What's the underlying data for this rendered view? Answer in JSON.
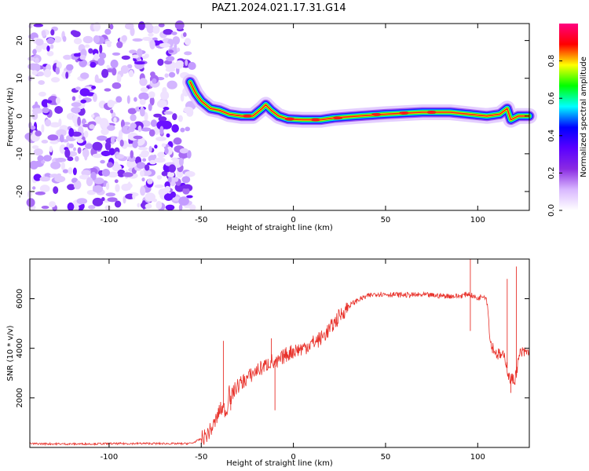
{
  "title": "PAZ1.2024.021.17.31.G14",
  "chart_data": [
    {
      "type": "heatmap",
      "xlabel": "Height of straight line (km)",
      "ylabel": "Frequency (Hz)",
      "xlim": [
        -143,
        128
      ],
      "ylim": [
        -25,
        24.5
      ],
      "x_ticks": [
        -100,
        -50,
        0,
        50,
        100
      ],
      "y_ticks": [
        -20,
        -10,
        0,
        10,
        20
      ],
      "colorbar": {
        "label": "Normalized spectral amplitude",
        "range": [
          0,
          1
        ],
        "ticks": [
          0.0,
          0.2,
          0.4,
          0.6,
          0.8
        ],
        "colormap": [
          "#ffffff",
          "#d9b8ff",
          "#8a2be2",
          "#5a00ff",
          "#0000ff",
          "#00ffff",
          "#00ff00",
          "#ffff00",
          "#ff0000",
          "#ff0080"
        ]
      },
      "noise_region_x": [
        -143,
        -53
      ],
      "ridge": [
        {
          "x": -56,
          "y": 9
        },
        {
          "x": -53,
          "y": 6
        },
        {
          "x": -50,
          "y": 4
        },
        {
          "x": -45,
          "y": 2
        },
        {
          "x": -40,
          "y": 1.5
        },
        {
          "x": -35,
          "y": 0.5
        },
        {
          "x": -28,
          "y": 0
        },
        {
          "x": -22,
          "y": 0
        },
        {
          "x": -17,
          "y": 2
        },
        {
          "x": -15,
          "y": 3
        },
        {
          "x": -12,
          "y": 1.5
        },
        {
          "x": -8,
          "y": 0
        },
        {
          "x": -3,
          "y": -0.8
        },
        {
          "x": 5,
          "y": -1
        },
        {
          "x": 15,
          "y": -1
        },
        {
          "x": 22,
          "y": -0.5
        },
        {
          "x": 35,
          "y": 0
        },
        {
          "x": 50,
          "y": 0.5
        },
        {
          "x": 70,
          "y": 1
        },
        {
          "x": 85,
          "y": 1
        },
        {
          "x": 95,
          "y": 0.5
        },
        {
          "x": 105,
          "y": 0
        },
        {
          "x": 112,
          "y": 0.5
        },
        {
          "x": 116,
          "y": 2
        },
        {
          "x": 118,
          "y": -1
        },
        {
          "x": 122,
          "y": 0
        },
        {
          "x": 128,
          "y": 0
        }
      ]
    },
    {
      "type": "line",
      "xlabel": "Height of straight line (km)",
      "ylabel": "SNR (10 * v/v)",
      "xlim": [
        -143,
        128
      ],
      "ylim": [
        0,
        7600
      ],
      "x_ticks": [
        -100,
        -50,
        0,
        50,
        100
      ],
      "y_ticks": [
        2000,
        4000,
        6000
      ],
      "color": "#e8312a",
      "series": [
        {
          "x": [
            -143,
            -120,
            -100,
            -80,
            -60,
            -55,
            -50,
            -47,
            -44,
            -42,
            -40,
            -38,
            -36,
            -35,
            -34,
            -33,
            -30,
            -25,
            -20,
            -15,
            -12,
            -10,
            -5,
            0,
            5,
            10,
            15,
            20,
            25,
            30,
            35,
            40,
            45,
            50,
            60,
            70,
            80,
            90,
            95,
            100,
            103,
            105,
            107,
            110,
            113,
            115,
            117,
            120,
            123,
            128
          ],
          "y": [
            150,
            140,
            150,
            160,
            150,
            170,
            350,
            500,
            800,
            1100,
            1500,
            1600,
            1400,
            2500,
            1800,
            2200,
            2500,
            2800,
            3100,
            3300,
            3500,
            3300,
            3700,
            3900,
            4000,
            4200,
            4400,
            4800,
            5300,
            5700,
            5950,
            6100,
            6200,
            6180,
            6150,
            6150,
            6120,
            6100,
            6200,
            6000,
            6150,
            6000,
            4200,
            3800,
            3700,
            3600,
            2800,
            2700,
            3800,
            3850
          ]
        }
      ],
      "spikes": [
        {
          "x": -38,
          "y": 4300
        },
        {
          "x": -34,
          "y": 1500
        },
        {
          "x": -12,
          "y": 4400
        },
        {
          "x": -10,
          "y": 1500
        },
        {
          "x": 96,
          "y": 7600
        },
        {
          "x": 96,
          "y": 4700
        },
        {
          "x": 116,
          "y": 6800
        },
        {
          "x": 118,
          "y": 2200
        },
        {
          "x": 121,
          "y": 7300
        }
      ]
    }
  ]
}
